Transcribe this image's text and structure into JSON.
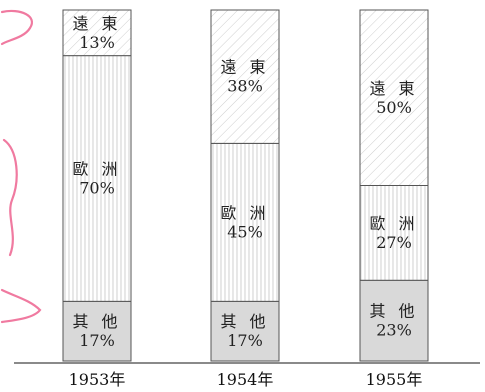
{
  "chart_data": {
    "type": "bar",
    "stacked": true,
    "percent": true,
    "categories": [
      "1953年",
      "1954年",
      "1955年"
    ],
    "series": [
      {
        "name": "其他",
        "values": [
          17,
          17,
          23
        ],
        "pattern": "solid-gray",
        "color": "#d9d9d9"
      },
      {
        "name": "歐洲",
        "values": [
          70,
          45,
          27
        ],
        "pattern": "vertical-lines",
        "color": "#ffffff"
      },
      {
        "name": "遠東",
        "values": [
          13,
          38,
          50
        ],
        "pattern": "diagonal-lines",
        "color": "#ffffff"
      }
    ],
    "value_labels": {
      "1953年": [
        "17%",
        "70%",
        "13%"
      ],
      "1954年": [
        "17%",
        "45%",
        "38%"
      ],
      "1955年": [
        "23%",
        "27%",
        "50%"
      ]
    },
    "ylim": [
      0,
      100
    ],
    "grid": false,
    "legend": "none",
    "title": "",
    "xlabel": "",
    "ylabel": ""
  },
  "colors": {
    "stroke": "#555555",
    "pink_mark": "#f07aa0",
    "baseline": "#444444"
  }
}
